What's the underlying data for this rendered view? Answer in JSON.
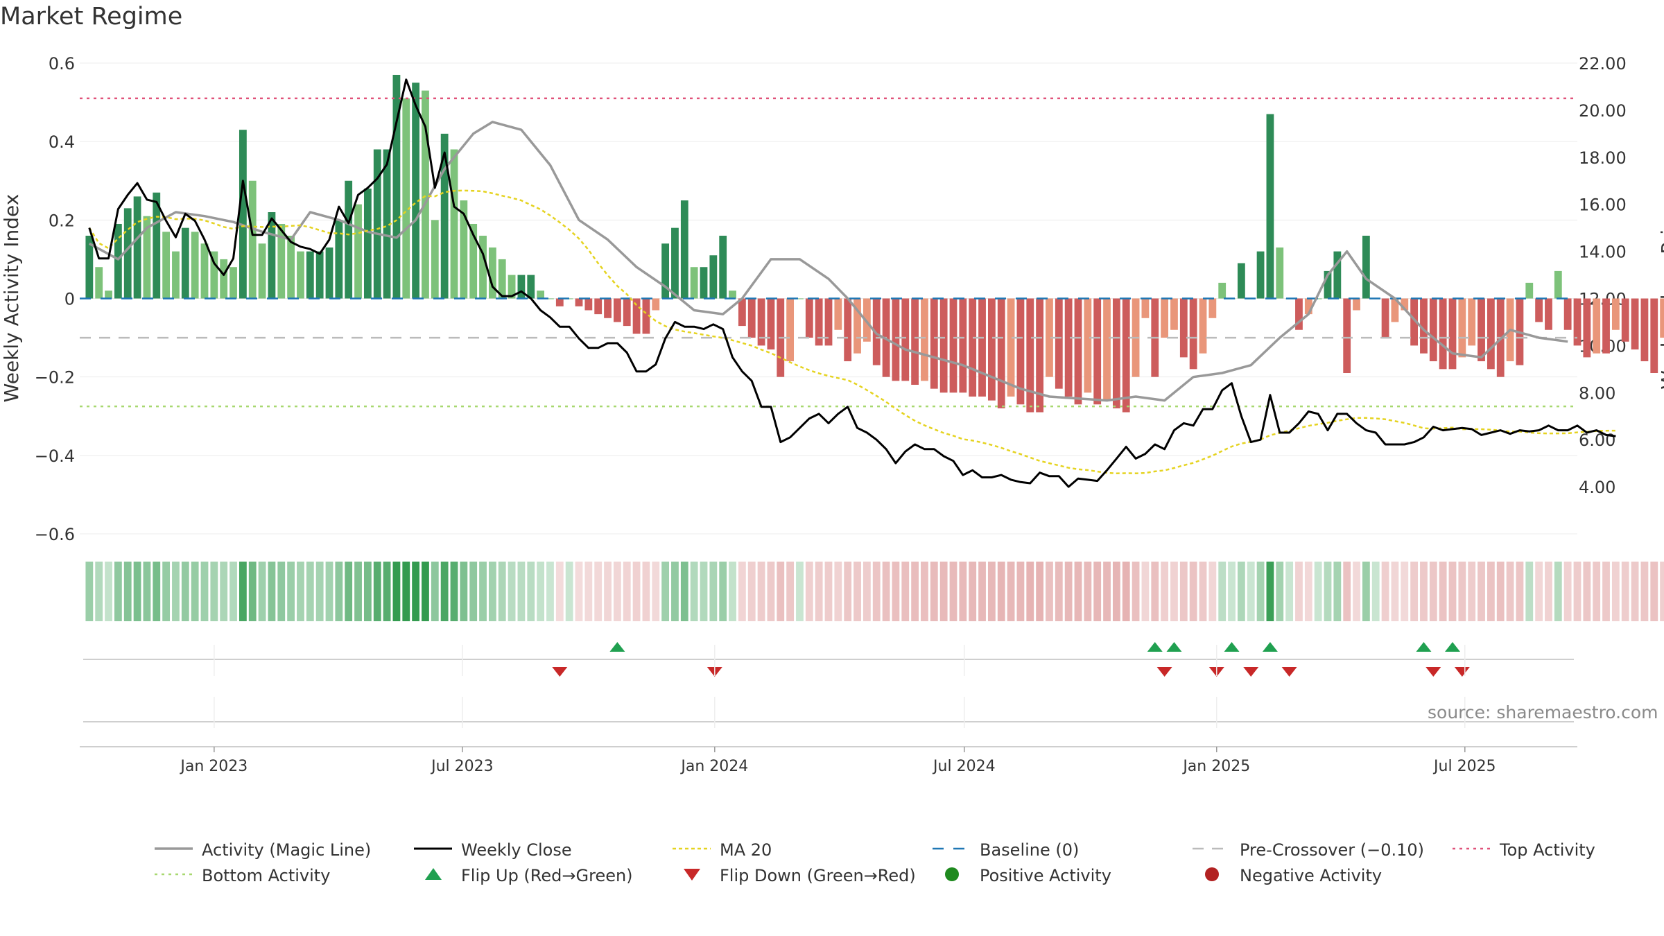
{
  "title": "Market Regime",
  "source": "source: sharemaestro.com",
  "colors": {
    "bar_pos_strong": "#2e8b57",
    "bar_pos_light": "#7dc27a",
    "bar_neg_strong": "#cd5c5c",
    "bar_neg_light": "#e9967a",
    "activity_line": "#999999",
    "close_line": "#000000",
    "ma_line": "#e5d320",
    "baseline": "#1f77b4",
    "pre_crossover": "#bbbbbb",
    "top_activity": "#e0527a",
    "bottom_activity": "#a8d870",
    "flip_up": "#20a050",
    "flip_down": "#c82828",
    "positive_activity": "#1f8a1f",
    "negative_activity": "#b22222"
  },
  "chart_data": {
    "type": "bar",
    "x_range": [
      "2022-09-25",
      "2025-09-21"
    ],
    "x_ticks": [
      {
        "date": "2023-01-01",
        "label": "Jan 2023"
      },
      {
        "date": "2023-07-01",
        "label": "Jul 2023"
      },
      {
        "date": "2024-01-01",
        "label": "Jan 2024"
      },
      {
        "date": "2024-07-01",
        "label": "Jul 2024"
      },
      {
        "date": "2025-01-01",
        "label": "Jan 2025"
      },
      {
        "date": "2025-07-01",
        "label": "Jul 2025"
      }
    ],
    "left_axis": {
      "label": "Weekly Activity Index",
      "ylim": [
        -0.6,
        0.6
      ],
      "ticks": [
        0.6,
        0.4,
        0.2,
        0,
        -0.2,
        -0.4,
        -0.6
      ],
      "tick_labels": [
        "0.6",
        "0.4",
        "0.2",
        "0",
        "−0.2",
        "−0.4",
        "−0.6"
      ]
    },
    "right_axis": {
      "label": "Weekly Close Price",
      "ylim": [
        2.0,
        22.0
      ],
      "ticks": [
        22,
        20,
        18,
        16,
        14,
        12,
        10,
        8,
        6,
        4
      ],
      "tick_labels": [
        "22.00",
        "20.00",
        "18.00",
        "16.00",
        "14.00",
        "12.00",
        "10.00",
        "8.00",
        "6.00",
        "4.00"
      ]
    },
    "levels": {
      "baseline": 0,
      "pre_crossover": -0.1,
      "top_activity": 0.51,
      "bottom_activity": -0.275
    },
    "start_date": "2022-10-02",
    "weekly_activity": [
      0.16,
      0.08,
      0.02,
      0.19,
      0.23,
      0.26,
      0.21,
      0.27,
      0.17,
      0.12,
      0.18,
      0.17,
      0.14,
      0.12,
      0.1,
      0.08,
      0.43,
      0.3,
      0.14,
      0.22,
      0.19,
      0.16,
      0.12,
      0.12,
      0.12,
      0.13,
      0.2,
      0.3,
      0.24,
      0.28,
      0.38,
      0.38,
      0.57,
      0.51,
      0.55,
      0.53,
      0.2,
      0.42,
      0.38,
      0.25,
      0.19,
      0.16,
      0.13,
      0.1,
      0.06,
      0.06,
      0.06,
      0.02,
      0.0,
      -0.02,
      0.0,
      -0.02,
      -0.03,
      -0.04,
      -0.05,
      -0.06,
      -0.07,
      -0.09,
      -0.09,
      -0.03,
      0.14,
      0.18,
      0.25,
      0.08,
      0.08,
      0.11,
      0.16,
      0.02,
      -0.07,
      -0.1,
      -0.12,
      -0.13,
      -0.2,
      -0.16,
      0.0,
      -0.1,
      -0.12,
      -0.12,
      -0.08,
      -0.16,
      -0.14,
      -0.11,
      -0.17,
      -0.2,
      -0.21,
      -0.21,
      -0.22,
      -0.21,
      -0.23,
      -0.24,
      -0.24,
      -0.24,
      -0.25,
      -0.25,
      -0.26,
      -0.28,
      -0.25,
      -0.27,
      -0.29,
      -0.29,
      -0.2,
      -0.23,
      -0.25,
      -0.27,
      -0.24,
      -0.27,
      -0.26,
      -0.28,
      -0.29,
      -0.2,
      -0.05,
      -0.2,
      -0.1,
      -0.08,
      -0.15,
      -0.18,
      -0.14,
      -0.05,
      0.04,
      0.0,
      0.09,
      0.0,
      0.12,
      0.47,
      0.13,
      0.0,
      -0.08,
      -0.04,
      0.0,
      0.07,
      0.12,
      -0.19,
      -0.03,
      0.16,
      0.0,
      -0.1,
      -0.06,
      -0.03,
      -0.12,
      -0.14,
      -0.16,
      -0.18,
      -0.18,
      -0.15,
      -0.12,
      -0.16,
      -0.18,
      -0.2,
      -0.16,
      -0.17,
      0.04,
      -0.06,
      -0.08,
      0.07,
      -0.08,
      -0.12,
      -0.15,
      -0.14,
      -0.14,
      -0.08,
      -0.11,
      -0.13,
      -0.16,
      -0.19,
      -0.1,
      -0.2,
      -0.21,
      -0.21
    ],
    "weekly_close": [
      15.0,
      13.7,
      13.7,
      15.8,
      16.4,
      16.9,
      16.2,
      16.1,
      15.3,
      14.6,
      15.6,
      15.3,
      14.5,
      13.5,
      13.0,
      13.7,
      17.0,
      14.7,
      14.7,
      15.4,
      14.9,
      14.4,
      14.2,
      14.1,
      13.9,
      14.5,
      15.9,
      15.2,
      16.4,
      16.7,
      17.1,
      17.7,
      19.5,
      21.3,
      20.2,
      19.3,
      16.7,
      18.2,
      15.9,
      15.6,
      14.7,
      13.9,
      12.5,
      12.1,
      12.1,
      12.3,
      12.0,
      11.5,
      11.2,
      10.8,
      10.8,
      10.3,
      9.9,
      9.9,
      10.1,
      10.1,
      9.7,
      8.9,
      8.9,
      9.2,
      10.3,
      11.0,
      10.8,
      10.8,
      10.7,
      10.9,
      10.7,
      9.5,
      8.9,
      8.5,
      7.4,
      7.4,
      5.9,
      6.1,
      6.5,
      6.9,
      7.1,
      6.7,
      7.1,
      7.4,
      6.5,
      6.3,
      6.0,
      5.6,
      5.0,
      5.5,
      5.8,
      5.6,
      5.6,
      5.3,
      5.1,
      4.5,
      4.7,
      4.4,
      4.4,
      4.5,
      4.3,
      4.2,
      4.15,
      4.6,
      4.45,
      4.45,
      4.0,
      4.35,
      4.3,
      4.25,
      4.7,
      5.2,
      5.7,
      5.2,
      5.4,
      5.8,
      5.6,
      6.4,
      6.7,
      6.6,
      7.3,
      7.3,
      8.1,
      8.4,
      7.0,
      5.9,
      6.0,
      7.9,
      6.3,
      6.3,
      6.7,
      7.2,
      7.1,
      6.4,
      7.1,
      7.1,
      6.7,
      6.4,
      6.3,
      5.8,
      5.8,
      5.8,
      5.9,
      6.1,
      6.55,
      6.4,
      6.45,
      6.5,
      6.45,
      6.2,
      6.3,
      6.4,
      6.25,
      6.4,
      6.35,
      6.4,
      6.6,
      6.4,
      6.4,
      6.6,
      6.3,
      6.4,
      6.2,
      6.15
    ],
    "close_sample_every_weeks": 1,
    "activity_magic_line": [
      {
        "date": "2022-10-02",
        "value": 0.14
      },
      {
        "date": "2022-10-23",
        "value": 0.1
      },
      {
        "date": "2022-11-13",
        "value": 0.18
      },
      {
        "date": "2022-12-04",
        "value": 0.22
      },
      {
        "date": "2022-12-25",
        "value": 0.21
      },
      {
        "date": "2023-01-15",
        "value": 0.195
      },
      {
        "date": "2023-02-05",
        "value": 0.17
      },
      {
        "date": "2023-02-26",
        "value": 0.15
      },
      {
        "date": "2023-03-12",
        "value": 0.22
      },
      {
        "date": "2023-04-02",
        "value": 0.2
      },
      {
        "date": "2023-04-23",
        "value": 0.17
      },
      {
        "date": "2023-05-14",
        "value": 0.155
      },
      {
        "date": "2023-05-28",
        "value": 0.2
      },
      {
        "date": "2023-06-18",
        "value": 0.33
      },
      {
        "date": "2023-07-09",
        "value": 0.42
      },
      {
        "date": "2023-07-23",
        "value": 0.45
      },
      {
        "date": "2023-08-13",
        "value": 0.43
      },
      {
        "date": "2023-09-03",
        "value": 0.34
      },
      {
        "date": "2023-09-24",
        "value": 0.2
      },
      {
        "date": "2023-10-15",
        "value": 0.15
      },
      {
        "date": "2023-11-05",
        "value": 0.08
      },
      {
        "date": "2023-11-26",
        "value": 0.03
      },
      {
        "date": "2023-12-17",
        "value": -0.03
      },
      {
        "date": "2024-01-07",
        "value": -0.04
      },
      {
        "date": "2024-01-21",
        "value": 0.0
      },
      {
        "date": "2024-02-11",
        "value": 0.1
      },
      {
        "date": "2024-03-03",
        "value": 0.1
      },
      {
        "date": "2024-03-24",
        "value": 0.05
      },
      {
        "date": "2024-04-07",
        "value": 0.0
      },
      {
        "date": "2024-04-28",
        "value": -0.09
      },
      {
        "date": "2024-05-19",
        "value": -0.13
      },
      {
        "date": "2024-06-09",
        "value": -0.15
      },
      {
        "date": "2024-06-30",
        "value": -0.17
      },
      {
        "date": "2024-07-21",
        "value": -0.2
      },
      {
        "date": "2024-08-11",
        "value": -0.23
      },
      {
        "date": "2024-09-01",
        "value": -0.25
      },
      {
        "date": "2024-09-22",
        "value": -0.255
      },
      {
        "date": "2024-10-13",
        "value": -0.26
      },
      {
        "date": "2024-11-03",
        "value": -0.25
      },
      {
        "date": "2024-11-24",
        "value": -0.26
      },
      {
        "date": "2024-12-15",
        "value": -0.2
      },
      {
        "date": "2025-01-05",
        "value": -0.19
      },
      {
        "date": "2025-01-26",
        "value": -0.17
      },
      {
        "date": "2025-02-16",
        "value": -0.1
      },
      {
        "date": "2025-03-09",
        "value": -0.04
      },
      {
        "date": "2025-03-23",
        "value": 0.06
      },
      {
        "date": "2025-04-06",
        "value": 0.12
      },
      {
        "date": "2025-04-20",
        "value": 0.05
      },
      {
        "date": "2025-05-11",
        "value": 0.0
      },
      {
        "date": "2025-06-01",
        "value": -0.08
      },
      {
        "date": "2025-06-22",
        "value": -0.14
      },
      {
        "date": "2025-07-13",
        "value": -0.15
      },
      {
        "date": "2025-08-03",
        "value": -0.08
      },
      {
        "date": "2025-08-24",
        "value": -0.1
      },
      {
        "date": "2025-09-14",
        "value": -0.11
      }
    ],
    "flip_up_dates": [
      "2023-10-22",
      "2024-11-17",
      "2024-12-01",
      "2025-01-12",
      "2025-02-09",
      "2025-06-01",
      "2025-06-22"
    ],
    "flip_down_dates": [
      "2023-09-10",
      "2024-01-01",
      "2024-11-24",
      "2025-01-01",
      "2025-01-26",
      "2025-02-23",
      "2025-06-08",
      "2025-06-29"
    ]
  },
  "legend": [
    {
      "key": "activity",
      "label": "Activity (Magic Line)"
    },
    {
      "key": "close",
      "label": "Weekly Close"
    },
    {
      "key": "ma",
      "label": "MA 20"
    },
    {
      "key": "baseline",
      "label": "Baseline (0)"
    },
    {
      "key": "pre",
      "label": "Pre-Crossover (−0.10)"
    },
    {
      "key": "top",
      "label": "Top Activity"
    },
    {
      "key": "bottom",
      "label": "Bottom Activity"
    },
    {
      "key": "flipup",
      "label": "Flip Up (Red→Green)"
    },
    {
      "key": "flipdown",
      "label": "Flip Down (Green→Red)"
    },
    {
      "key": "pos",
      "label": "Positive Activity"
    },
    {
      "key": "neg",
      "label": "Negative Activity"
    }
  ]
}
